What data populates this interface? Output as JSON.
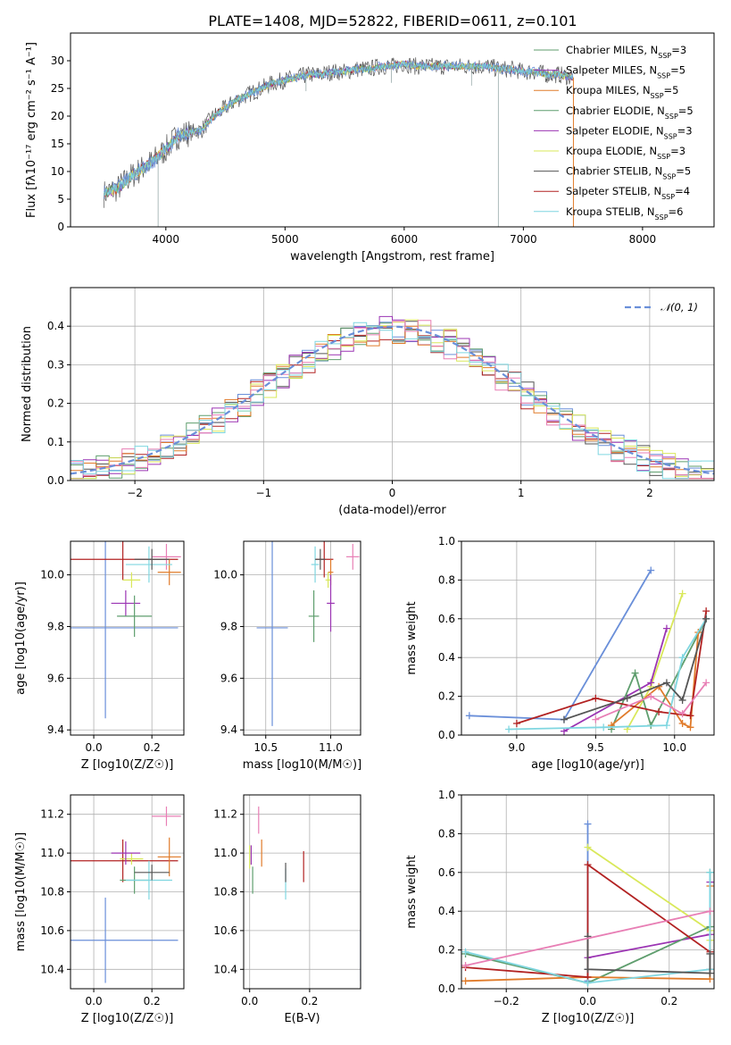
{
  "title": "PLATE=1408, MJD=52822, FIBERID=0611, z=0.101",
  "colors": {
    "chabrier_miles": "#5f9e6e",
    "salpeter_miles": "#9b34b3",
    "kroupa_miles": "#e07b2a",
    "chabrier_elodie": "#5f9e6e",
    "salpeter_elodie": "#9b34b3",
    "kroupa_elodie": "#d9e85a",
    "chabrier_stelib": "#555555",
    "salpeter_stelib": "#b22222",
    "kroupa_stelib": "#7fd6e0",
    "data_blue": "#6a8fd9",
    "pink": "#e87fb5"
  },
  "chart_data": [
    {
      "id": "spectrum",
      "type": "line",
      "xlabel": "wavelength [Angstrom, rest frame]",
      "ylabel": "Flux [fλ10⁻¹⁷ erg cm⁻² s⁻¹ A⁻¹]",
      "xlim": [
        3200,
        8600
      ],
      "ylim": [
        0,
        35
      ],
      "xticks": [
        4000,
        5000,
        6000,
        7000,
        8000
      ],
      "yticks": [
        0,
        5,
        10,
        15,
        20,
        25,
        30
      ],
      "grid": false,
      "legend_position": "right",
      "wavelength_samples": [
        3480,
        3600,
        3700,
        3800,
        3900,
        4000,
        4100,
        4200,
        4300,
        4400,
        4500,
        4600,
        4700,
        4800,
        4900,
        5000,
        5100,
        5200,
        5300,
        5400,
        5500,
        5600,
        5700,
        5800,
        5900,
        6000,
        6100,
        6200,
        6300,
        6400,
        6500,
        6600,
        6700,
        6800,
        6900,
        7000,
        7100,
        7200,
        7300,
        7400
      ],
      "flux_samples": [
        6,
        7,
        9,
        10.5,
        12,
        14,
        16.5,
        17,
        17.5,
        20,
        21.5,
        23,
        24,
        25,
        26,
        26.5,
        27,
        27.5,
        27.5,
        28,
        28,
        28.5,
        28.5,
        29,
        29,
        29.5,
        29,
        29,
        29,
        29,
        29,
        29,
        29,
        28.5,
        28.5,
        28,
        28,
        27.5,
        27.5,
        27
      ],
      "legend": [
        "Chabrier MILES, N_SSP=3",
        "Salpeter MILES, N_SSP=5",
        "Kroupa MILES, N_SSP=5",
        "Chabrier ELODIE, N_SSP=5",
        "Salpeter ELODIE, N_SSP=3",
        "Kroupa ELODIE, N_SSP=3",
        "Chabrier STELIB, N_SSP=5",
        "Salpeter STELIB, N_SSP=4",
        "Kroupa STELIB, N_SSP=6"
      ]
    },
    {
      "id": "residuals",
      "type": "line",
      "xlabel": "(data-model)/error",
      "ylabel": "Normed distribution",
      "xlim": [
        -2.5,
        2.5
      ],
      "ylim": [
        0,
        0.5
      ],
      "xticks": [
        -2,
        -1,
        0,
        1,
        2
      ],
      "yticks": [
        0.0,
        0.1,
        0.2,
        0.3,
        0.4
      ],
      "grid": true,
      "legend": [
        "𝒩(0, 1)"
      ],
      "legend_position": "top-right",
      "bin_width": 0.1
    },
    {
      "id": "age_vs_Z",
      "type": "scatter",
      "xlabel": "Z [log10(Z/Z☉)]",
      "ylabel": "age  [log10(age/yr)]",
      "xlim": [
        -0.08,
        0.31
      ],
      "ylim": [
        9.38,
        10.13
      ],
      "xticks": [
        0.0,
        0.2
      ],
      "yticks": [
        9.4,
        9.6,
        9.8,
        10.0
      ],
      "grid": true,
      "points": [
        {
          "key": "data_blue",
          "x": 0.04,
          "y": 9.795,
          "xerr": 0.25,
          "yerr": 0.35
        },
        {
          "key": "salpeter_stelib",
          "x": 0.1,
          "y": 10.06,
          "xerr": 0.19,
          "yerr": 0.08
        },
        {
          "key": "kroupa_miles",
          "x": 0.26,
          "y": 10.01,
          "xerr": 0.04,
          "yerr": 0.05
        },
        {
          "key": "pink",
          "x": 0.25,
          "y": 10.07,
          "xerr": 0.05,
          "yerr": 0.05
        },
        {
          "key": "kroupa_elodie",
          "x": 0.13,
          "y": 9.98,
          "xerr": 0.03,
          "yerr": 0.03
        },
        {
          "key": "salpeter_miles",
          "x": 0.11,
          "y": 9.89,
          "xerr": 0.05,
          "yerr": 0.05
        },
        {
          "key": "chabrier_miles",
          "x": 0.14,
          "y": 9.84,
          "xerr": 0.06,
          "yerr": 0.08
        },
        {
          "key": "kroupa_stelib",
          "x": 0.19,
          "y": 10.04,
          "xerr": 0.08,
          "yerr": 0.07
        },
        {
          "key": "chabrier_stelib",
          "x": 0.2,
          "y": 10.06,
          "xerr": 0.06,
          "yerr": 0.04
        }
      ]
    },
    {
      "id": "age_vs_mass",
      "type": "scatter",
      "xlabel": "mass [log10(M/M☉)]",
      "ylabel": "",
      "xlim": [
        10.33,
        11.23
      ],
      "ylim": [
        9.38,
        10.13
      ],
      "xticks": [
        10.5,
        11.0
      ],
      "yticks": [
        9.4,
        9.6,
        9.8,
        10.0
      ],
      "grid": true,
      "points": [
        {
          "key": "data_blue",
          "x": 10.55,
          "y": 9.795,
          "xerr": 0.12,
          "yerr": 0.38
        },
        {
          "key": "salpeter_stelib",
          "x": 10.95,
          "y": 10.06,
          "xerr": 0.07,
          "yerr": 0.07
        },
        {
          "key": "kroupa_miles",
          "x": 11.0,
          "y": 10.01,
          "xerr": 0.02,
          "yerr": 0.05
        },
        {
          "key": "pink",
          "x": 11.17,
          "y": 10.07,
          "xerr": 0.05,
          "yerr": 0.05
        },
        {
          "key": "kroupa_elodie",
          "x": 10.98,
          "y": 9.98,
          "xerr": 0.02,
          "yerr": 0.03
        },
        {
          "key": "salpeter_miles",
          "x": 11.0,
          "y": 9.89,
          "xerr": 0.03,
          "yerr": 0.11
        },
        {
          "key": "chabrier_miles",
          "x": 10.87,
          "y": 9.84,
          "xerr": 0.04,
          "yerr": 0.1
        },
        {
          "key": "kroupa_stelib",
          "x": 10.88,
          "y": 10.04,
          "xerr": 0.03,
          "yerr": 0.07
        },
        {
          "key": "chabrier_stelib",
          "x": 10.92,
          "y": 10.06,
          "xerr": 0.04,
          "yerr": 0.04
        }
      ]
    },
    {
      "id": "weight_vs_age",
      "type": "line",
      "xlabel": "age  [log10(age/yr)]",
      "ylabel": "mass weight",
      "xlim": [
        8.65,
        10.25
      ],
      "ylim": [
        0,
        1
      ],
      "xticks": [
        9.0,
        9.5,
        10.0
      ],
      "yticks": [
        0.0,
        0.2,
        0.4,
        0.6,
        0.8,
        1.0
      ],
      "grid": true,
      "series": [
        {
          "key": "data_blue",
          "x": [
            8.7,
            9.3,
            9.85
          ],
          "y": [
            0.1,
            0.08,
            0.85
          ]
        },
        {
          "key": "kroupa_elodie",
          "x": [
            9.7,
            9.85,
            10.05
          ],
          "y": [
            0.03,
            0.25,
            0.73
          ]
        },
        {
          "key": "salpeter_miles",
          "x": [
            9.3,
            9.85,
            9.95
          ],
          "y": [
            0.02,
            0.27,
            0.55
          ]
        },
        {
          "key": "chabrier_miles",
          "x": [
            9.6,
            9.75,
            9.85,
            10.2
          ],
          "y": [
            0.03,
            0.32,
            0.05,
            0.6
          ]
        },
        {
          "key": "kroupa_miles",
          "x": [
            9.6,
            9.9,
            10.05,
            10.1,
            10.15
          ],
          "y": [
            0.05,
            0.25,
            0.06,
            0.04,
            0.53
          ]
        },
        {
          "key": "salpeter_stelib",
          "x": [
            9.0,
            9.5,
            9.9,
            10.1,
            10.2
          ],
          "y": [
            0.06,
            0.19,
            0.12,
            0.1,
            0.64
          ]
        },
        {
          "key": "kroupa_stelib",
          "x": [
            8.95,
            9.55,
            9.95,
            10.05,
            10.2
          ],
          "y": [
            0.03,
            0.04,
            0.05,
            0.4,
            0.6
          ]
        },
        {
          "key": "chabrier_stelib",
          "x": [
            9.3,
            9.7,
            9.95,
            10.05,
            10.2
          ],
          "y": [
            0.08,
            0.19,
            0.27,
            0.18,
            0.6
          ]
        },
        {
          "key": "pink",
          "x": [
            9.5,
            9.85,
            10.05,
            10.2
          ],
          "y": [
            0.08,
            0.2,
            0.11,
            0.27
          ]
        }
      ]
    },
    {
      "id": "mass_vs_Z",
      "type": "scatter",
      "xlabel": "Z [log10(Z/Z☉)]",
      "ylabel": "mass [log10(M/M☉)]",
      "xlim": [
        -0.08,
        0.31
      ],
      "ylim": [
        10.3,
        11.3
      ],
      "xticks": [
        0.0,
        0.2
      ],
      "yticks": [
        10.4,
        10.6,
        10.8,
        11.0,
        11.2
      ],
      "grid": true,
      "points": [
        {
          "key": "data_blue",
          "x": 0.04,
          "y": 10.55,
          "xerr": 0.25,
          "yerr": 0.22
        },
        {
          "key": "salpeter_stelib",
          "x": 0.1,
          "y": 10.96,
          "xerr": 0.19,
          "yerr": 0.11
        },
        {
          "key": "kroupa_miles",
          "x": 0.26,
          "y": 10.98,
          "xerr": 0.04,
          "yerr": 0.1
        },
        {
          "key": "pink",
          "x": 0.25,
          "y": 11.19,
          "xerr": 0.05,
          "yerr": 0.05
        },
        {
          "key": "kroupa_elodie",
          "x": 0.13,
          "y": 10.97,
          "xerr": 0.04,
          "yerr": 0.03
        },
        {
          "key": "salpeter_miles",
          "x": 0.11,
          "y": 11.0,
          "xerr": 0.05,
          "yerr": 0.06
        },
        {
          "key": "chabrier_miles",
          "x": 0.14,
          "y": 10.86,
          "xerr": 0.05,
          "yerr": 0.07
        },
        {
          "key": "kroupa_stelib",
          "x": 0.19,
          "y": 10.86,
          "xerr": 0.08,
          "yerr": 0.1
        },
        {
          "key": "chabrier_stelib",
          "x": 0.2,
          "y": 10.9,
          "xerr": 0.06,
          "yerr": 0.04
        }
      ]
    },
    {
      "id": "mass_vs_ebv",
      "type": "scatter",
      "xlabel": "E(B-V)",
      "ylabel": "",
      "xlim": [
        -0.02,
        0.37
      ],
      "ylim": [
        10.3,
        11.3
      ],
      "xticks": [
        0.0,
        0.2
      ],
      "yticks": [
        10.4,
        10.6,
        10.8,
        11.0,
        11.2
      ],
      "grid": true,
      "points": [
        {
          "key": "data_blue",
          "x": 0.37,
          "y": 10.47,
          "xerr": 0,
          "yerr": 0.13
        },
        {
          "key": "salpeter_stelib",
          "x": 0.18,
          "y": 10.93,
          "xerr": 0,
          "yerr": 0.08
        },
        {
          "key": "kroupa_miles",
          "x": 0.04,
          "y": 11.0,
          "xerr": 0,
          "yerr": 0.07
        },
        {
          "key": "pink",
          "x": 0.03,
          "y": 11.17,
          "xerr": 0,
          "yerr": 0.07
        },
        {
          "key": "chabrier_miles",
          "x": 0.01,
          "y": 10.86,
          "xerr": 0,
          "yerr": 0.07
        },
        {
          "key": "kroupa_elodie",
          "x": 0.0,
          "y": 10.98,
          "xerr": 0,
          "yerr": 0.06
        },
        {
          "key": "salpeter_miles",
          "x": 0.005,
          "y": 10.99,
          "xerr": 0,
          "yerr": 0.05
        },
        {
          "key": "kroupa_stelib",
          "x": 0.12,
          "y": 10.84,
          "xerr": 0,
          "yerr": 0.08
        },
        {
          "key": "chabrier_stelib",
          "x": 0.12,
          "y": 10.9,
          "xerr": 0,
          "yerr": 0.05
        }
      ]
    },
    {
      "id": "weight_vs_Z",
      "type": "line",
      "xlabel": "Z [log10(Z/Z☉)]",
      "ylabel": "mass weight",
      "xlim": [
        -0.31,
        0.31
      ],
      "ylim": [
        0,
        1
      ],
      "xticks": [
        -0.2,
        0.0,
        0.2
      ],
      "yticks": [
        0.0,
        0.2,
        0.4,
        0.6,
        0.8,
        1.0
      ],
      "grid": true,
      "series": [
        {
          "key": "data_blue",
          "x": [
            0.0,
            0.0,
            0.0
          ],
          "y": [
            0.04,
            0.85,
            0.1
          ]
        },
        {
          "key": "kroupa_elodie",
          "x": [
            0.0,
            0.3,
            0.3
          ],
          "y": [
            0.73,
            0.3,
            0.25
          ]
        },
        {
          "key": "salpeter_miles",
          "x": [
            0.0,
            0.3,
            0.3
          ],
          "y": [
            0.16,
            0.28,
            0.55
          ]
        },
        {
          "key": "chabrier_miles",
          "x": [
            -0.3,
            0.0,
            0.3,
            0.3
          ],
          "y": [
            0.18,
            0.03,
            0.32,
            0.6
          ]
        },
        {
          "key": "kroupa_miles",
          "x": [
            -0.3,
            0.0,
            0.3,
            0.3
          ],
          "y": [
            0.04,
            0.06,
            0.05,
            0.53
          ]
        },
        {
          "key": "salpeter_stelib",
          "x": [
            -0.3,
            0.0,
            0.0,
            0.3,
            0.3
          ],
          "y": [
            0.11,
            0.06,
            0.64,
            0.19,
            0.1
          ]
        },
        {
          "key": "kroupa_stelib",
          "x": [
            -0.3,
            0.0,
            0.3,
            0.3
          ],
          "y": [
            0.19,
            0.03,
            0.1,
            0.6
          ]
        },
        {
          "key": "chabrier_stelib",
          "x": [
            0.0,
            0.0,
            0.3,
            0.3
          ],
          "y": [
            0.27,
            0.1,
            0.08,
            0.18
          ]
        },
        {
          "key": "pink",
          "x": [
            -0.3,
            0.3
          ],
          "y": [
            0.12,
            0.4
          ]
        }
      ]
    }
  ]
}
